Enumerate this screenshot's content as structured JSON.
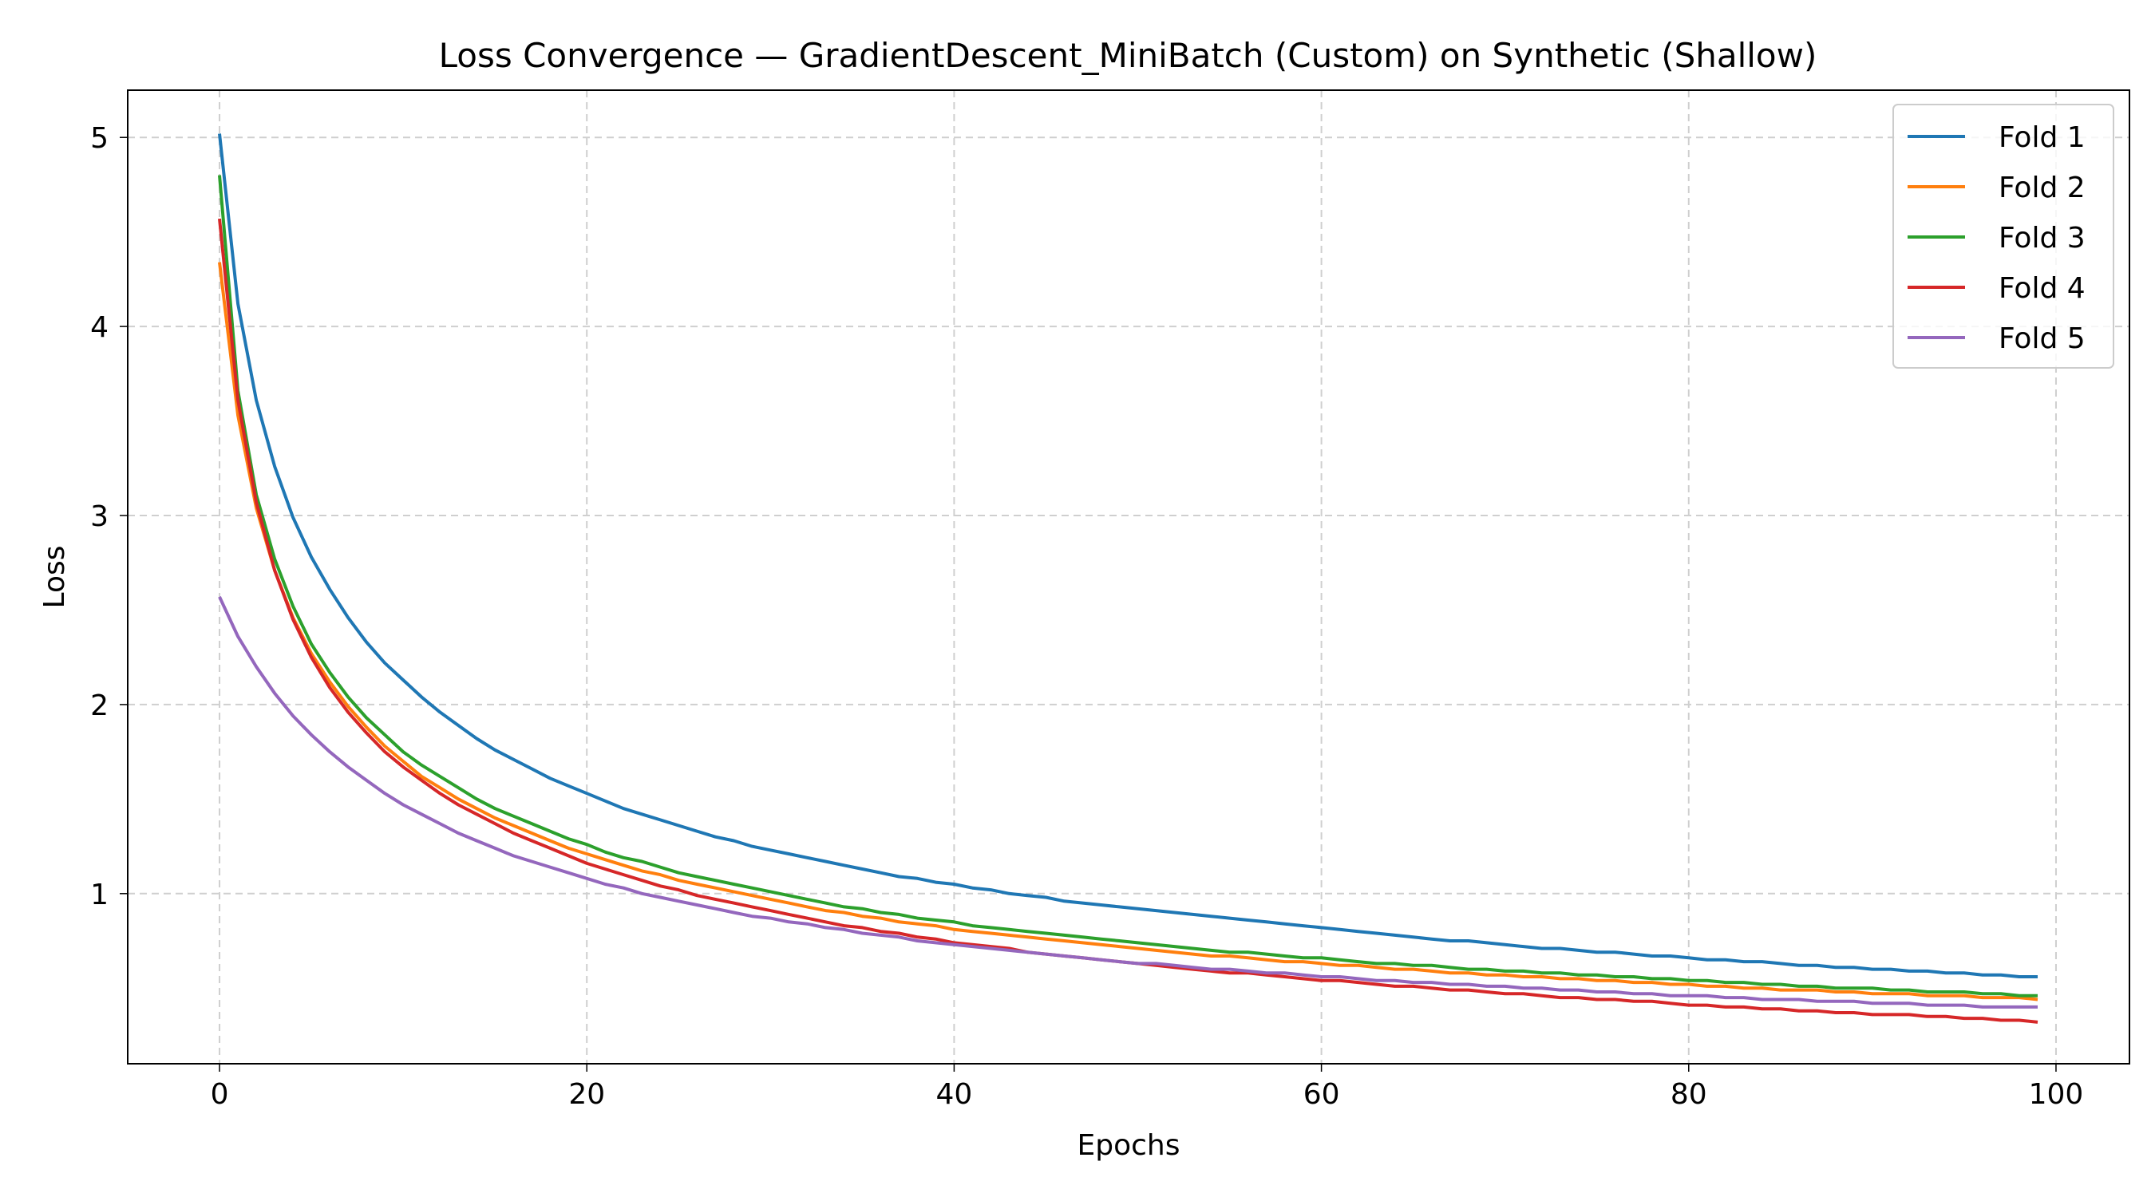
{
  "chart_data": {
    "type": "line",
    "title": "Loss Convergence — GradientDescent_MiniBatch (Custom) on Synthetic (Shallow)",
    "xlabel": "Epochs",
    "ylabel": "Loss",
    "xlim": [
      -5,
      104
    ],
    "ylim": [
      0.1,
      5.25
    ],
    "xticks": [
      0,
      20,
      40,
      60,
      80,
      100
    ],
    "yticks": [
      1,
      2,
      3,
      4,
      5
    ],
    "grid": true,
    "legend_position": "upper-right",
    "x": [
      0,
      1,
      2,
      3,
      4,
      5,
      6,
      7,
      8,
      9,
      10,
      11,
      12,
      13,
      14,
      15,
      16,
      17,
      18,
      19,
      20,
      21,
      22,
      23,
      24,
      25,
      26,
      27,
      28,
      29,
      30,
      31,
      32,
      33,
      34,
      35,
      36,
      37,
      38,
      39,
      40,
      41,
      42,
      43,
      44,
      45,
      46,
      47,
      48,
      49,
      50,
      51,
      52,
      53,
      54,
      55,
      56,
      57,
      58,
      59,
      60,
      61,
      62,
      63,
      64,
      65,
      66,
      67,
      68,
      69,
      70,
      71,
      72,
      73,
      74,
      75,
      76,
      77,
      78,
      79,
      80,
      81,
      82,
      83,
      84,
      85,
      86,
      87,
      88,
      89,
      90,
      91,
      92,
      93,
      94,
      95,
      96,
      97,
      98,
      99
    ],
    "series": [
      {
        "name": "Fold 1",
        "color": "#1f77b4",
        "values": [
          5.02,
          4.12,
          3.61,
          3.26,
          2.99,
          2.78,
          2.61,
          2.46,
          2.33,
          2.22,
          2.13,
          2.04,
          1.96,
          1.89,
          1.82,
          1.76,
          1.71,
          1.66,
          1.61,
          1.57,
          1.53,
          1.49,
          1.45,
          1.42,
          1.39,
          1.36,
          1.33,
          1.3,
          1.28,
          1.25,
          1.23,
          1.21,
          1.19,
          1.17,
          1.15,
          1.13,
          1.11,
          1.09,
          1.08,
          1.06,
          1.05,
          1.03,
          1.02,
          1.0,
          0.99,
          0.98,
          0.96,
          0.95,
          0.94,
          0.93,
          0.92,
          0.91,
          0.9,
          0.89,
          0.88,
          0.87,
          0.86,
          0.85,
          0.84,
          0.83,
          0.82,
          0.81,
          0.8,
          0.79,
          0.78,
          0.77,
          0.76,
          0.75,
          0.75,
          0.74,
          0.73,
          0.72,
          0.71,
          0.71,
          0.7,
          0.69,
          0.69,
          0.68,
          0.67,
          0.67,
          0.66,
          0.65,
          0.65,
          0.64,
          0.64,
          0.63,
          0.62,
          0.62,
          0.61,
          0.61,
          0.6,
          0.6,
          0.59,
          0.59,
          0.58,
          0.58,
          0.57,
          0.57,
          0.56,
          0.56
        ]
      },
      {
        "name": "Fold 2",
        "color": "#ff7f0e",
        "values": [
          4.34,
          3.53,
          3.04,
          2.71,
          2.46,
          2.27,
          2.12,
          1.99,
          1.88,
          1.78,
          1.7,
          1.62,
          1.56,
          1.5,
          1.45,
          1.4,
          1.36,
          1.32,
          1.28,
          1.24,
          1.21,
          1.18,
          1.15,
          1.12,
          1.1,
          1.07,
          1.05,
          1.03,
          1.01,
          0.99,
          0.97,
          0.95,
          0.93,
          0.91,
          0.9,
          0.88,
          0.87,
          0.85,
          0.84,
          0.83,
          0.81,
          0.8,
          0.79,
          0.78,
          0.77,
          0.76,
          0.75,
          0.74,
          0.73,
          0.72,
          0.71,
          0.7,
          0.69,
          0.68,
          0.67,
          0.67,
          0.66,
          0.65,
          0.64,
          0.64,
          0.63,
          0.62,
          0.62,
          0.61,
          0.6,
          0.6,
          0.59,
          0.58,
          0.58,
          0.57,
          0.57,
          0.56,
          0.56,
          0.55,
          0.55,
          0.54,
          0.54,
          0.53,
          0.53,
          0.52,
          0.52,
          0.51,
          0.51,
          0.5,
          0.5,
          0.49,
          0.49,
          0.49,
          0.48,
          0.48,
          0.47,
          0.47,
          0.47,
          0.46,
          0.46,
          0.46,
          0.45,
          0.45,
          0.45,
          0.44
        ]
      },
      {
        "name": "Fold 3",
        "color": "#2ca02c",
        "values": [
          4.8,
          3.66,
          3.11,
          2.77,
          2.52,
          2.32,
          2.17,
          2.04,
          1.93,
          1.84,
          1.75,
          1.68,
          1.62,
          1.56,
          1.5,
          1.45,
          1.41,
          1.37,
          1.33,
          1.29,
          1.26,
          1.22,
          1.19,
          1.17,
          1.14,
          1.11,
          1.09,
          1.07,
          1.05,
          1.03,
          1.01,
          0.99,
          0.97,
          0.95,
          0.93,
          0.92,
          0.9,
          0.89,
          0.87,
          0.86,
          0.85,
          0.83,
          0.82,
          0.81,
          0.8,
          0.79,
          0.78,
          0.77,
          0.76,
          0.75,
          0.74,
          0.73,
          0.72,
          0.71,
          0.7,
          0.69,
          0.69,
          0.68,
          0.67,
          0.66,
          0.66,
          0.65,
          0.64,
          0.63,
          0.63,
          0.62,
          0.62,
          0.61,
          0.6,
          0.6,
          0.59,
          0.59,
          0.58,
          0.58,
          0.57,
          0.57,
          0.56,
          0.56,
          0.55,
          0.55,
          0.54,
          0.54,
          0.53,
          0.53,
          0.52,
          0.52,
          0.51,
          0.51,
          0.5,
          0.5,
          0.5,
          0.49,
          0.49,
          0.48,
          0.48,
          0.48,
          0.47,
          0.47,
          0.46,
          0.46
        ]
      },
      {
        "name": "Fold 4",
        "color": "#d62728",
        "values": [
          4.57,
          3.61,
          3.07,
          2.71,
          2.45,
          2.25,
          2.09,
          1.96,
          1.85,
          1.75,
          1.67,
          1.6,
          1.53,
          1.47,
          1.42,
          1.37,
          1.32,
          1.28,
          1.24,
          1.2,
          1.16,
          1.13,
          1.1,
          1.07,
          1.04,
          1.02,
          0.99,
          0.97,
          0.95,
          0.93,
          0.91,
          0.89,
          0.87,
          0.85,
          0.83,
          0.82,
          0.8,
          0.79,
          0.77,
          0.76,
          0.74,
          0.73,
          0.72,
          0.71,
          0.69,
          0.68,
          0.67,
          0.66,
          0.65,
          0.64,
          0.63,
          0.62,
          0.61,
          0.6,
          0.59,
          0.58,
          0.58,
          0.57,
          0.56,
          0.55,
          0.54,
          0.54,
          0.53,
          0.52,
          0.51,
          0.51,
          0.5,
          0.49,
          0.49,
          0.48,
          0.47,
          0.47,
          0.46,
          0.45,
          0.45,
          0.44,
          0.44,
          0.43,
          0.43,
          0.42,
          0.41,
          0.41,
          0.4,
          0.4,
          0.39,
          0.39,
          0.38,
          0.38,
          0.37,
          0.37,
          0.36,
          0.36,
          0.36,
          0.35,
          0.35,
          0.34,
          0.34,
          0.33,
          0.33,
          0.32
        ]
      },
      {
        "name": "Fold 5",
        "color": "#9467bd",
        "values": [
          2.57,
          2.36,
          2.2,
          2.06,
          1.94,
          1.84,
          1.75,
          1.67,
          1.6,
          1.53,
          1.47,
          1.42,
          1.37,
          1.32,
          1.28,
          1.24,
          1.2,
          1.17,
          1.14,
          1.11,
          1.08,
          1.05,
          1.03,
          1.0,
          0.98,
          0.96,
          0.94,
          0.92,
          0.9,
          0.88,
          0.87,
          0.85,
          0.84,
          0.82,
          0.81,
          0.79,
          0.78,
          0.77,
          0.75,
          0.74,
          0.73,
          0.72,
          0.71,
          0.7,
          0.69,
          0.68,
          0.67,
          0.66,
          0.65,
          0.64,
          0.63,
          0.63,
          0.62,
          0.61,
          0.6,
          0.6,
          0.59,
          0.58,
          0.58,
          0.57,
          0.56,
          0.56,
          0.55,
          0.54,
          0.54,
          0.53,
          0.53,
          0.52,
          0.52,
          0.51,
          0.51,
          0.5,
          0.5,
          0.49,
          0.49,
          0.48,
          0.48,
          0.47,
          0.47,
          0.46,
          0.46,
          0.46,
          0.45,
          0.45,
          0.44,
          0.44,
          0.44,
          0.43,
          0.43,
          0.43,
          0.42,
          0.42,
          0.42,
          0.41,
          0.41,
          0.41,
          0.4,
          0.4,
          0.4,
          0.4
        ]
      }
    ]
  }
}
